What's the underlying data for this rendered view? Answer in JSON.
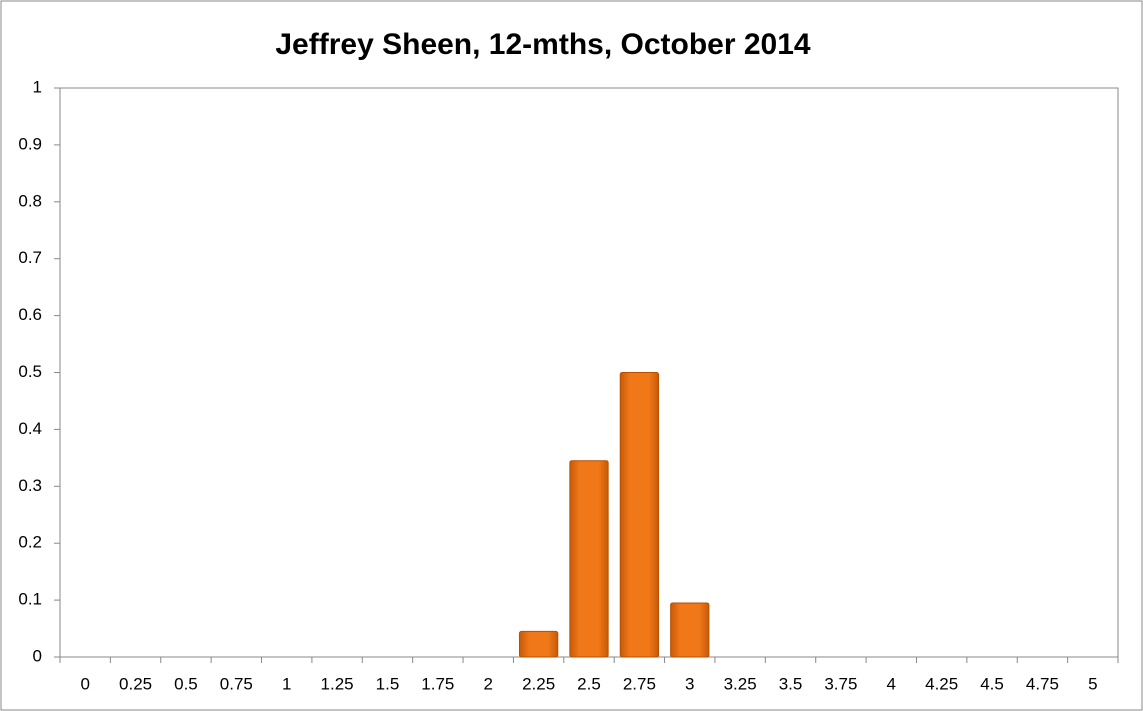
{
  "chart_data": {
    "type": "bar",
    "title": "Jeffrey Sheen, 12-mths, October 2014",
    "categories": [
      "0",
      "0.25",
      "0.5",
      "0.75",
      "1",
      "1.25",
      "1.5",
      "1.75",
      "2",
      "2.25",
      "2.5",
      "2.75",
      "3",
      "3.25",
      "3.5",
      "3.75",
      "4",
      "4.25",
      "4.5",
      "4.75",
      "5"
    ],
    "values": [
      0,
      0,
      0,
      0,
      0,
      0,
      0,
      0,
      0,
      0.045,
      0.345,
      0.5,
      0.095,
      0,
      0,
      0,
      0,
      0,
      0,
      0,
      0
    ],
    "color": "#f07818",
    "ylim": [
      0,
      1
    ],
    "yticks": [
      0,
      0.1,
      0.2,
      0.3,
      0.4,
      0.5,
      0.6,
      0.7,
      0.8,
      0.9,
      1
    ],
    "grid": false
  }
}
